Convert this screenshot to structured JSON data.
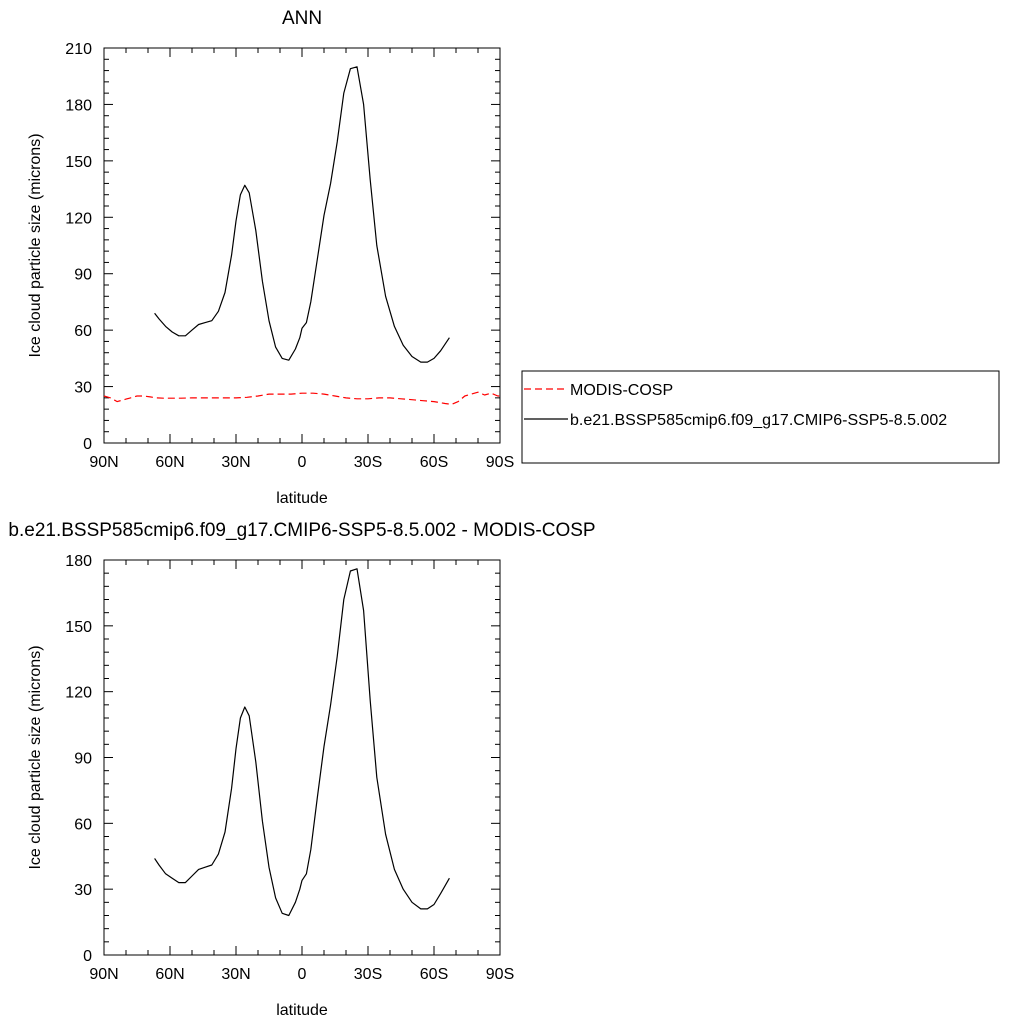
{
  "chart_data": [
    {
      "type": "line",
      "title": "ANN",
      "xlabel": "latitude",
      "ylabel": "Ice cloud particle size (microns)",
      "xlim": [
        90,
        -90
      ],
      "ylim": [
        0,
        210
      ],
      "xticks": [
        90,
        60,
        30,
        0,
        -30,
        -60,
        -90
      ],
      "xtick_labels": [
        "90N",
        "60N",
        "30N",
        "0",
        "30S",
        "60S",
        "90S"
      ],
      "yticks": [
        0,
        30,
        60,
        90,
        120,
        150,
        180,
        210
      ],
      "ytick_labels": [
        "0",
        "30",
        "60",
        "90",
        "120",
        "150",
        "180",
        "210"
      ],
      "legend_position": "right",
      "series": [
        {
          "name": "MODIS-COSP",
          "color": "#ff0000",
          "dash": "dashed",
          "x": [
            90,
            87,
            84,
            81,
            78,
            75,
            72,
            69,
            66,
            63,
            60,
            55,
            50,
            45,
            40,
            35,
            30,
            25,
            20,
            15,
            10,
            5,
            0,
            -5,
            -10,
            -15,
            -20,
            -25,
            -30,
            -35,
            -40,
            -45,
            -50,
            -55,
            -60,
            -65,
            -68,
            -71,
            -74,
            -77,
            -80,
            -83,
            -86,
            -89,
            -90
          ],
          "y": [
            25,
            24,
            22,
            23,
            24,
            25,
            25,
            24.5,
            24,
            23.8,
            23.8,
            23.8,
            24,
            24,
            24,
            24,
            24,
            24.3,
            25,
            26,
            26,
            26,
            26.5,
            26.5,
            26,
            25,
            24,
            23.5,
            23.5,
            24,
            24,
            23.5,
            23,
            22.5,
            22,
            21,
            20.5,
            22,
            25,
            26,
            27,
            25.5,
            26.5,
            25,
            25
          ]
        },
        {
          "name": "b.e21.BSSP585cmip6.f09_g17.CMIP6-SSP5-8.5.002",
          "color": "#000000",
          "dash": "solid",
          "x": [
            67,
            65,
            62,
            59,
            56,
            53,
            50,
            47,
            44,
            41,
            38,
            35,
            32,
            30,
            28,
            26,
            24,
            21,
            18,
            15,
            12,
            9,
            6,
            3,
            1,
            0,
            -2,
            -4,
            -7,
            -10,
            -13,
            -16,
            -19,
            -22,
            -25,
            -28,
            -31,
            -34,
            -38,
            -42,
            -46,
            -50,
            -54,
            -57,
            -60,
            -63,
            -67
          ],
          "y": [
            69,
            66,
            62,
            59,
            57,
            57,
            60,
            63,
            64,
            65,
            70,
            80,
            100,
            118,
            132,
            137,
            133,
            113,
            86,
            65,
            51,
            45,
            44,
            50,
            56,
            61,
            64,
            75,
            98,
            121,
            138,
            160,
            186,
            199,
            200,
            180,
            140,
            105,
            78,
            62,
            52,
            46,
            43,
            43,
            45,
            49,
            56
          ]
        }
      ]
    },
    {
      "type": "line",
      "title": "b.e21.BSSP585cmip6.f09_g17.CMIP6-SSP5-8.5.002 - MODIS-COSP",
      "xlabel": "latitude",
      "ylabel": "Ice cloud particle size (microns)",
      "xlim": [
        90,
        -90
      ],
      "ylim": [
        0,
        180
      ],
      "xticks": [
        90,
        60,
        30,
        0,
        -30,
        -60,
        -90
      ],
      "xtick_labels": [
        "90N",
        "60N",
        "30N",
        "0",
        "30S",
        "60S",
        "90S"
      ],
      "yticks": [
        0,
        30,
        60,
        90,
        120,
        150,
        180
      ],
      "ytick_labels": [
        "0",
        "30",
        "60",
        "90",
        "120",
        "150",
        "180"
      ],
      "series": [
        {
          "color": "#000000",
          "dash": "solid",
          "x": [
            67,
            65,
            62,
            59,
            56,
            53,
            50,
            47,
            44,
            41,
            38,
            35,
            32,
            30,
            28,
            26,
            24,
            21,
            18,
            15,
            12,
            9,
            6,
            3,
            1,
            0,
            -2,
            -4,
            -7,
            -10,
            -13,
            -16,
            -19,
            -22,
            -25,
            -28,
            -31,
            -34,
            -38,
            -42,
            -46,
            -50,
            -54,
            -57,
            -60,
            -63,
            -67
          ],
          "y": [
            44,
            41,
            37,
            35,
            33,
            33,
            36,
            39,
            40,
            41,
            46,
            56,
            76,
            94,
            108,
            113,
            109,
            88,
            61,
            40,
            26,
            19,
            18,
            24,
            30,
            34,
            37,
            48,
            72,
            95,
            114,
            136,
            162,
            175,
            176,
            157,
            116,
            81,
            55,
            39,
            30,
            24,
            21,
            21,
            23,
            28,
            35
          ]
        }
      ]
    }
  ]
}
